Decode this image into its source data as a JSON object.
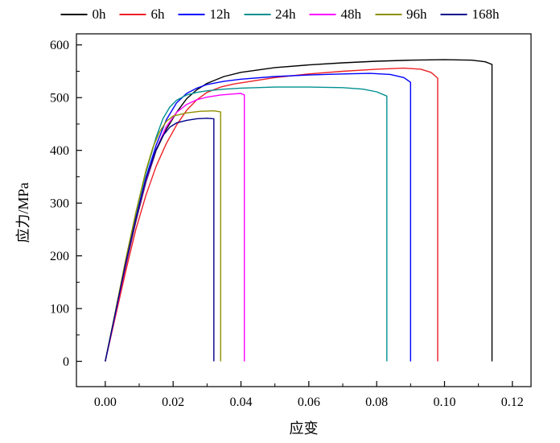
{
  "chart_data": {
    "type": "line",
    "title": "",
    "xlabel": "应变",
    "ylabel": "应力/MPa",
    "xlim": [
      -0.0085,
      0.1255
    ],
    "ylim": [
      -48,
      621
    ],
    "grid": false,
    "legend_position": "top",
    "x_ticks": {
      "values": [
        0,
        0.02,
        0.04,
        0.06,
        0.08,
        0.1,
        0.12
      ],
      "labels": [
        "0.00",
        "0.02",
        "0.04",
        "0.06",
        "0.08",
        "0.10",
        "0.12"
      ],
      "minor_step": 0.01
    },
    "y_ticks": {
      "values": [
        0,
        100,
        200,
        300,
        400,
        500,
        600
      ],
      "labels": [
        "0",
        "100",
        "200",
        "300",
        "400",
        "500",
        "600"
      ],
      "minor_step": 50
    },
    "series": [
      {
        "name": "0h",
        "color": "#000000",
        "points": [
          [
            0,
            0
          ],
          [
            0.003,
            90
          ],
          [
            0.006,
            180
          ],
          [
            0.009,
            265
          ],
          [
            0.012,
            340
          ],
          [
            0.015,
            400
          ],
          [
            0.018,
            440
          ],
          [
            0.021,
            472
          ],
          [
            0.024,
            498
          ],
          [
            0.027,
            515
          ],
          [
            0.03,
            527
          ],
          [
            0.035,
            540
          ],
          [
            0.04,
            548
          ],
          [
            0.05,
            557
          ],
          [
            0.06,
            562
          ],
          [
            0.07,
            566
          ],
          [
            0.08,
            569
          ],
          [
            0.09,
            571
          ],
          [
            0.1,
            572
          ],
          [
            0.108,
            571
          ],
          [
            0.112,
            568
          ],
          [
            0.114,
            563
          ],
          [
            0.114,
            0
          ]
        ]
      },
      {
        "name": "6h",
        "color": "#ed2024",
        "points": [
          [
            0,
            0
          ],
          [
            0.003,
            85
          ],
          [
            0.006,
            170
          ],
          [
            0.009,
            250
          ],
          [
            0.012,
            315
          ],
          [
            0.015,
            370
          ],
          [
            0.018,
            413
          ],
          [
            0.021,
            448
          ],
          [
            0.024,
            476
          ],
          [
            0.027,
            496
          ],
          [
            0.03,
            510
          ],
          [
            0.034,
            520
          ],
          [
            0.038,
            526
          ],
          [
            0.042,
            530
          ],
          [
            0.05,
            538
          ],
          [
            0.06,
            545
          ],
          [
            0.07,
            550
          ],
          [
            0.08,
            554
          ],
          [
            0.088,
            556
          ],
          [
            0.093,
            554
          ],
          [
            0.096,
            548
          ],
          [
            0.098,
            537
          ],
          [
            0.098,
            0
          ]
        ]
      },
      {
        "name": "12h",
        "color": "#0000ff",
        "points": [
          [
            0,
            0
          ],
          [
            0.003,
            92
          ],
          [
            0.006,
            185
          ],
          [
            0.009,
            272
          ],
          [
            0.012,
            348
          ],
          [
            0.015,
            410
          ],
          [
            0.018,
            458
          ],
          [
            0.021,
            490
          ],
          [
            0.024,
            508
          ],
          [
            0.027,
            518
          ],
          [
            0.03,
            525
          ],
          [
            0.035,
            531
          ],
          [
            0.04,
            535
          ],
          [
            0.05,
            540
          ],
          [
            0.06,
            543
          ],
          [
            0.07,
            545
          ],
          [
            0.078,
            546
          ],
          [
            0.084,
            544
          ],
          [
            0.088,
            538
          ],
          [
            0.09,
            529
          ],
          [
            0.09,
            0
          ]
        ]
      },
      {
        "name": "24h",
        "color": "#009090",
        "points": [
          [
            0,
            0
          ],
          [
            0.003,
            95
          ],
          [
            0.006,
            190
          ],
          [
            0.009,
            280
          ],
          [
            0.012,
            358
          ],
          [
            0.015,
            425
          ],
          [
            0.017,
            460
          ],
          [
            0.019,
            482
          ],
          [
            0.021,
            495
          ],
          [
            0.024,
            505
          ],
          [
            0.027,
            510
          ],
          [
            0.03,
            513
          ],
          [
            0.035,
            516
          ],
          [
            0.04,
            518
          ],
          [
            0.05,
            520
          ],
          [
            0.06,
            520
          ],
          [
            0.07,
            519
          ],
          [
            0.076,
            516
          ],
          [
            0.08,
            511
          ],
          [
            0.083,
            503
          ],
          [
            0.083,
            0
          ]
        ]
      },
      {
        "name": "48h",
        "color": "#ff00ff",
        "points": [
          [
            0,
            0
          ],
          [
            0.003,
            90
          ],
          [
            0.006,
            182
          ],
          [
            0.009,
            268
          ],
          [
            0.012,
            342
          ],
          [
            0.015,
            402
          ],
          [
            0.018,
            445
          ],
          [
            0.021,
            472
          ],
          [
            0.024,
            487
          ],
          [
            0.027,
            496
          ],
          [
            0.03,
            501
          ],
          [
            0.034,
            505
          ],
          [
            0.038,
            507
          ],
          [
            0.04,
            508
          ],
          [
            0.041,
            505
          ],
          [
            0.041,
            0
          ]
        ]
      },
      {
        "name": "96h",
        "color": "#8f8f00",
        "points": [
          [
            0,
            0
          ],
          [
            0.003,
            95
          ],
          [
            0.006,
            192
          ],
          [
            0.009,
            282
          ],
          [
            0.012,
            362
          ],
          [
            0.014,
            405
          ],
          [
            0.016,
            435
          ],
          [
            0.018,
            455
          ],
          [
            0.02,
            465
          ],
          [
            0.024,
            471
          ],
          [
            0.028,
            474
          ],
          [
            0.032,
            475
          ],
          [
            0.034,
            473
          ],
          [
            0.034,
            0
          ]
        ]
      },
      {
        "name": "168h",
        "color": "#00008b",
        "points": [
          [
            0,
            0
          ],
          [
            0.003,
            92
          ],
          [
            0.006,
            185
          ],
          [
            0.009,
            270
          ],
          [
            0.012,
            345
          ],
          [
            0.015,
            402
          ],
          [
            0.017,
            428
          ],
          [
            0.019,
            444
          ],
          [
            0.021,
            452
          ],
          [
            0.024,
            457
          ],
          [
            0.027,
            460
          ],
          [
            0.03,
            461
          ],
          [
            0.032,
            460
          ],
          [
            0.032,
            0
          ]
        ]
      }
    ]
  }
}
